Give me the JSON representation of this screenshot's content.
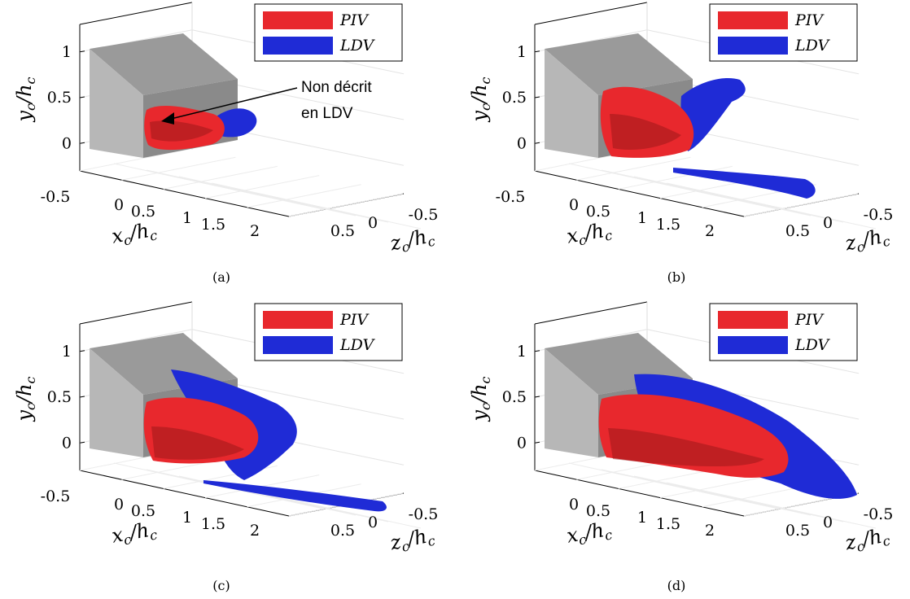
{
  "figure": {
    "colors": {
      "piv": "#e8282d",
      "piv_dark": "#8e1416",
      "ldv": "#1f2bd6",
      "ldv_dark": "#0b1380",
      "block_side": "#b7b7b7",
      "block_top": "#9a9a9a",
      "block_front": "#8a8a8a"
    }
  },
  "chart_data": [
    {
      "type": "3d-isosurface",
      "caption": "(a)",
      "legend": [
        {
          "label": "PIV",
          "color": "#e8282d"
        },
        {
          "label": "LDV",
          "color": "#1f2bd6"
        }
      ],
      "legend_placement": "top-right",
      "axes": {
        "y": {
          "label": "y_c/h_c",
          "ticks": [
            "1",
            "0.5",
            "0"
          ],
          "range": [
            -0.3,
            1.3
          ]
        },
        "x": {
          "label": "x_c/h_c",
          "ticks": [
            "-0.5",
            "0",
            "0.5",
            "1",
            "1.5",
            "2"
          ],
          "range": [
            -0.6,
            2.4
          ]
        },
        "z": {
          "label": "z_c/h_c",
          "ticks": [
            "0.5",
            "0",
            "-0.5"
          ],
          "range": [
            -0.7,
            0.7
          ]
        }
      },
      "annotation": {
        "line1": "Non décrit",
        "line2": "en LDV"
      }
    },
    {
      "type": "3d-isosurface",
      "caption": "(b)",
      "legend": [
        {
          "label": "PIV",
          "color": "#e8282d"
        },
        {
          "label": "LDV",
          "color": "#1f2bd6"
        }
      ],
      "legend_placement": "top-right",
      "axes": {
        "y": {
          "label": "y_c/h_c",
          "ticks": [
            "1",
            "0.5",
            "0"
          ],
          "range": [
            -0.3,
            1.3
          ]
        },
        "x": {
          "label": "x_c/h_c",
          "ticks": [
            "-0.5",
            "0",
            "0.5",
            "1",
            "1.5",
            "2"
          ],
          "range": [
            -0.6,
            2.4
          ]
        },
        "z": {
          "label": "z_c/h_c",
          "ticks": [
            "0.5",
            "0",
            "-0.5"
          ],
          "range": [
            -0.7,
            0.7
          ]
        }
      }
    },
    {
      "type": "3d-isosurface",
      "caption": "(c)",
      "legend": [
        {
          "label": "PIV",
          "color": "#e8282d"
        },
        {
          "label": "LDV",
          "color": "#1f2bd6"
        }
      ],
      "legend_placement": "top-right",
      "axes": {
        "y": {
          "label": "y_c/h_c",
          "ticks": [
            "1",
            "0.5",
            "0"
          ],
          "range": [
            -0.3,
            1.3
          ]
        },
        "x": {
          "label": "x_c/h_c",
          "ticks": [
            "-0.5",
            "0",
            "0.5",
            "1",
            "1.5",
            "2"
          ],
          "range": [
            -0.6,
            2.4
          ]
        },
        "z": {
          "label": "z_c/h_c",
          "ticks": [
            "0.5",
            "0",
            "-0.5"
          ],
          "range": [
            -0.7,
            0.7
          ]
        }
      }
    },
    {
      "type": "3d-isosurface",
      "caption": "(d)",
      "legend": [
        {
          "label": "PIV",
          "color": "#e8282d"
        },
        {
          "label": "LDV",
          "color": "#1f2bd6"
        }
      ],
      "legend_placement": "top-right",
      "axes": {
        "y": {
          "label": "y_c/h_c",
          "ticks": [
            "1",
            "0.5",
            "0"
          ],
          "range": [
            -0.3,
            1.3
          ]
        },
        "x": {
          "label": "x_c/h_c",
          "ticks": [
            "0",
            "0.5",
            "1",
            "1.5",
            "2"
          ],
          "range": [
            -0.6,
            2.4
          ]
        },
        "z": {
          "label": "z_c/h_c",
          "ticks": [
            "0.5",
            "0",
            "-0.5"
          ],
          "range": [
            -0.7,
            0.7
          ]
        }
      }
    }
  ]
}
